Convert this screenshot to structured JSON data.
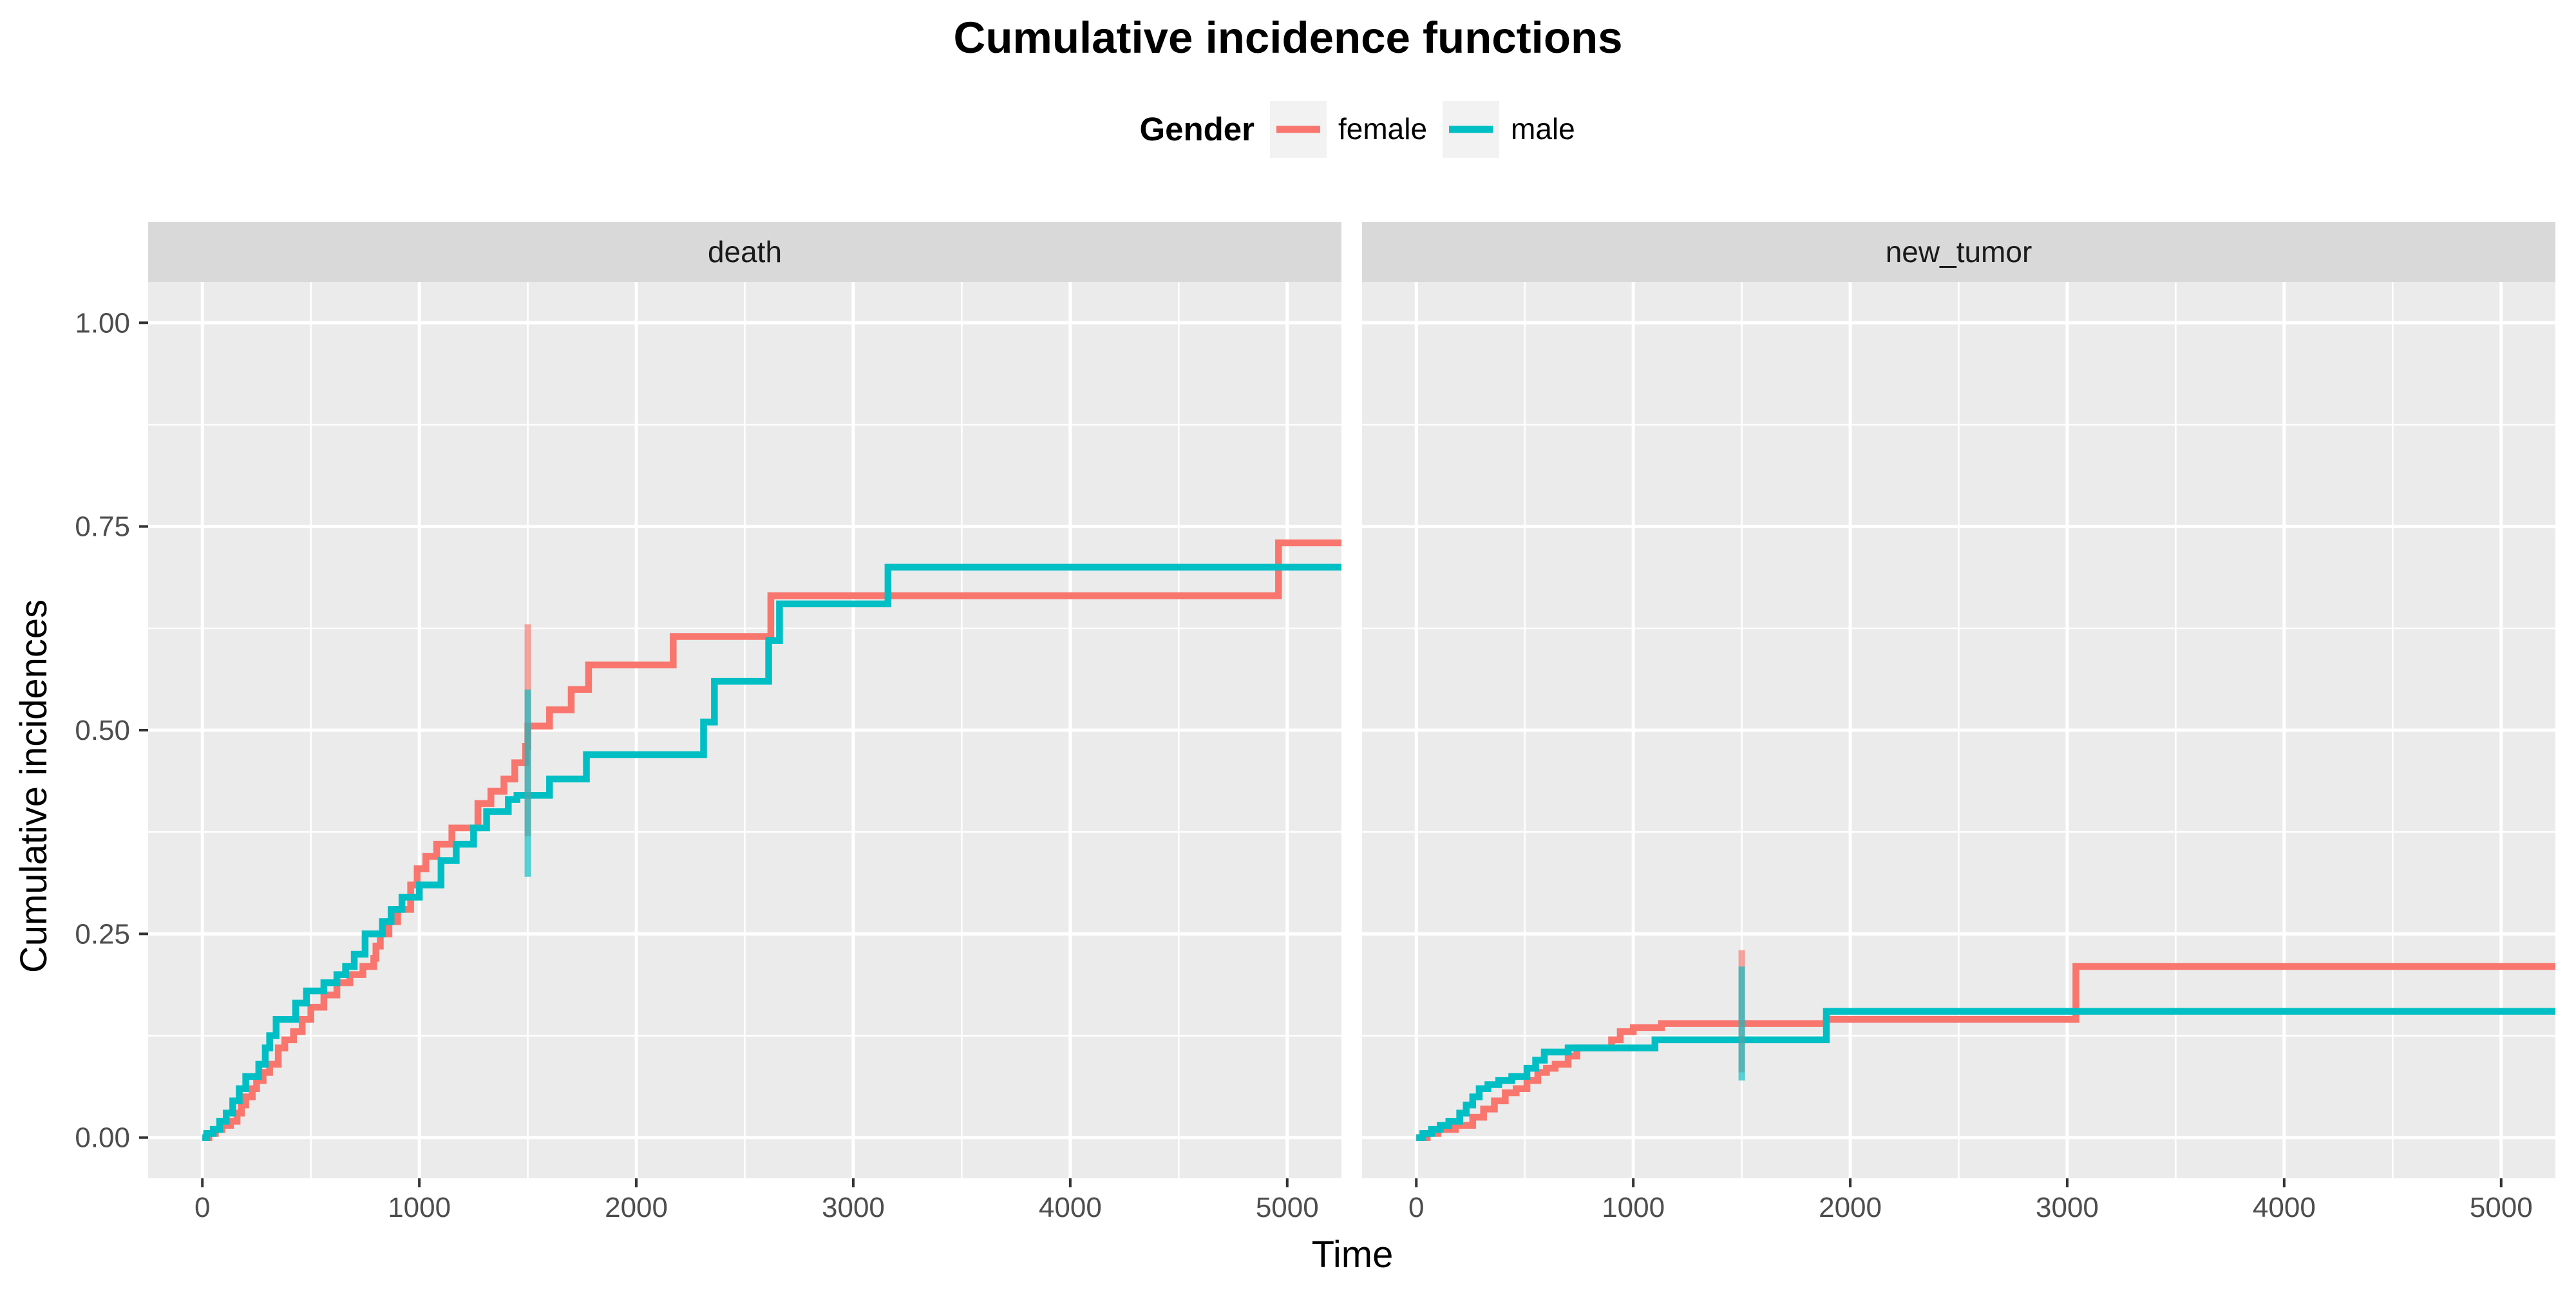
{
  "chart_data": {
    "type": "line",
    "title": "Cumulative incidence functions",
    "xlabel": "Time",
    "ylabel": "Cumulative incidences",
    "xlim": [
      -250,
      5250
    ],
    "ylim": [
      -0.05,
      1.05
    ],
    "x_ticks": [
      0,
      1000,
      2000,
      3000,
      4000,
      5000
    ],
    "x_tick_labels": [
      "0",
      "1000",
      "2000",
      "3000",
      "4000",
      "5000"
    ],
    "y_ticks": [
      0,
      0.25,
      0.5,
      0.75,
      1.0
    ],
    "y_tick_labels": [
      "0.00",
      "0.25",
      "0.50",
      "0.75",
      "1.00"
    ],
    "legend": {
      "title": "Gender",
      "position": "top",
      "entries": [
        {
          "label": "female",
          "color": "#F8766D"
        },
        {
          "label": "male",
          "color": "#00BFC4"
        }
      ]
    },
    "panels": [
      {
        "strip_label": "death",
        "series": [
          {
            "name": "female",
            "color": "#F8766D",
            "x": [
              0,
              30,
              60,
              90,
              130,
              160,
              180,
              200,
              230,
              250,
              280,
              310,
              350,
              380,
              420,
              460,
              500,
              560,
              620,
              680,
              740,
              790,
              800,
              820,
              860,
              900,
              960,
              990,
              1030,
              1080,
              1150,
              1270,
              1330,
              1390,
              1440,
              1490,
              1500,
              1600,
              1700,
              1780,
              2170,
              2620,
              4960,
              5250
            ],
            "y": [
              0.0,
              0.005,
              0.01,
              0.015,
              0.02,
              0.03,
              0.04,
              0.05,
              0.06,
              0.07,
              0.08,
              0.09,
              0.11,
              0.12,
              0.13,
              0.145,
              0.16,
              0.175,
              0.19,
              0.2,
              0.21,
              0.22,
              0.235,
              0.25,
              0.265,
              0.28,
              0.31,
              0.33,
              0.345,
              0.36,
              0.38,
              0.41,
              0.425,
              0.44,
              0.46,
              0.48,
              0.505,
              0.525,
              0.55,
              0.58,
              0.615,
              0.665,
              0.73,
              0.73
            ]
          },
          {
            "name": "male",
            "color": "#00BFC4",
            "x": [
              0,
              20,
              50,
              80,
              110,
              140,
              170,
              200,
              260,
              290,
              310,
              340,
              430,
              480,
              560,
              620,
              660,
              700,
              750,
              830,
              870,
              920,
              1000,
              1100,
              1170,
              1250,
              1310,
              1410,
              1450,
              1600,
              1770,
              2310,
              2360,
              2610,
              2660,
              3160,
              5250
            ],
            "y": [
              0.0,
              0.005,
              0.01,
              0.02,
              0.03,
              0.045,
              0.06,
              0.075,
              0.09,
              0.11,
              0.125,
              0.145,
              0.165,
              0.18,
              0.19,
              0.2,
              0.21,
              0.225,
              0.25,
              0.265,
              0.28,
              0.295,
              0.31,
              0.34,
              0.36,
              0.38,
              0.4,
              0.415,
              0.42,
              0.44,
              0.47,
              0.51,
              0.56,
              0.61,
              0.655,
              0.7,
              0.7
            ]
          }
        ],
        "error_bars": [
          {
            "series": "female",
            "x": 1500,
            "low": 0.37,
            "high": 0.63
          },
          {
            "series": "male",
            "x": 1500,
            "low": 0.32,
            "high": 0.55
          }
        ]
      },
      {
        "strip_label": "new_tumor",
        "series": [
          {
            "name": "female",
            "color": "#F8766D",
            "x": [
              0,
              50,
              100,
              180,
              260,
              310,
              360,
              410,
              460,
              510,
              560,
              600,
              640,
              700,
              740,
              900,
              940,
              1000,
              1130,
              1890,
              3040,
              5250
            ],
            "y": [
              0.0,
              0.005,
              0.01,
              0.015,
              0.025,
              0.035,
              0.045,
              0.055,
              0.06,
              0.07,
              0.08,
              0.085,
              0.09,
              0.1,
              0.11,
              0.12,
              0.13,
              0.135,
              0.14,
              0.145,
              0.21,
              0.21
            ]
          },
          {
            "name": "male",
            "color": "#00BFC4",
            "x": [
              0,
              30,
              70,
              110,
              150,
              200,
              230,
              260,
              290,
              330,
              380,
              440,
              510,
              550,
              590,
              700,
              1100,
              1890,
              5250
            ],
            "y": [
              0.0,
              0.005,
              0.01,
              0.015,
              0.02,
              0.03,
              0.04,
              0.05,
              0.06,
              0.065,
              0.07,
              0.075,
              0.085,
              0.095,
              0.105,
              0.11,
              0.12,
              0.155,
              0.155
            ]
          }
        ],
        "error_bars": [
          {
            "series": "female",
            "x": 1500,
            "low": 0.08,
            "high": 0.23
          },
          {
            "series": "male",
            "x": 1500,
            "low": 0.07,
            "high": 0.21
          }
        ]
      }
    ]
  }
}
